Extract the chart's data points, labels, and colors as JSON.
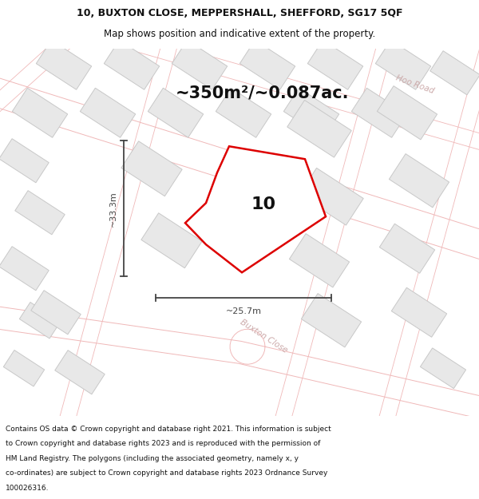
{
  "title_line1": "10, BUXTON CLOSE, MEPPERSHALL, SHEFFORD, SG17 5QF",
  "title_line2": "Map shows position and indicative extent of the property.",
  "area_text": "~350m²/~0.087ac.",
  "number_label": "10",
  "dim_vertical": "~33.3m",
  "dim_horizontal": "~25.7m",
  "road_label": "Buxton Close",
  "road_label2": "Hoo Road",
  "footer_lines": [
    "Contains OS data © Crown copyright and database right 2021. This information is subject",
    "to Crown copyright and database rights 2023 and is reproduced with the permission of",
    "HM Land Registry. The polygons (including the associated geometry, namely x, y",
    "co-ordinates) are subject to Crown copyright and database rights 2023 Ordnance Survey",
    "100026316."
  ],
  "bg_color": "#ffffff",
  "map_bg": "#ffffff",
  "plot_outline_color": "#dd0000",
  "building_fill": "#e8e8e8",
  "building_stroke": "#c8c8c8",
  "road_stroke": "#f0b8b8",
  "dim_color": "#444444",
  "title_color": "#111111",
  "footer_color": "#111111",
  "title_fontsize": 9.0,
  "subtitle_fontsize": 8.5,
  "area_fontsize": 15,
  "dim_fontsize": 8,
  "number_fontsize": 16,
  "road_fontsize": 7.5,
  "footer_fontsize": 6.5
}
